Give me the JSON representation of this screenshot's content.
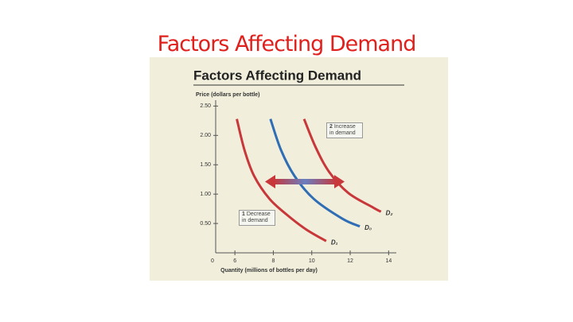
{
  "slide_title": "Factors Affecting Demand",
  "chart_data": {
    "type": "line",
    "title": "Factors Affecting Demand",
    "y_label": "Price (dollars per bottle)",
    "x_label": "Quantity (millions of bottles per day)",
    "origin_label": "0",
    "xlim": [
      5,
      14.4
    ],
    "xticks": [
      6,
      8,
      10,
      12,
      14
    ],
    "ylim": [
      0,
      2.6
    ],
    "yticks": [
      {
        "value": 0.5,
        "label": "0.50"
      },
      {
        "value": 1.0,
        "label": "1.00"
      },
      {
        "value": 1.5,
        "label": "1.50"
      },
      {
        "value": 2.0,
        "label": "2.00"
      },
      {
        "value": 2.5,
        "label": "2.50"
      }
    ],
    "series": [
      {
        "name": "D₁",
        "color": "#c8373a",
        "x": [
          6.1,
          6.5,
          7.0,
          7.8,
          8.7,
          9.7,
          10.75
        ],
        "values": [
          2.28,
          1.75,
          1.31,
          0.92,
          0.65,
          0.4,
          0.2
        ]
      },
      {
        "name": "D₀",
        "color": "#2f6db5",
        "x": [
          7.85,
          8.4,
          9.1,
          10.1,
          11.6,
          12.5
        ],
        "values": [
          2.28,
          1.75,
          1.31,
          0.92,
          0.58,
          0.45
        ]
      },
      {
        "name": "D₂",
        "color": "#c8373a",
        "x": [
          9.6,
          10.2,
          10.9,
          11.9,
          13.2,
          13.6
        ],
        "values": [
          2.28,
          1.8,
          1.38,
          1.02,
          0.77,
          0.7
        ]
      }
    ],
    "annotations": [
      {
        "marker": "2",
        "text": "Increase in demand"
      },
      {
        "marker": "1",
        "text": "Decrease in demand"
      }
    ]
  }
}
